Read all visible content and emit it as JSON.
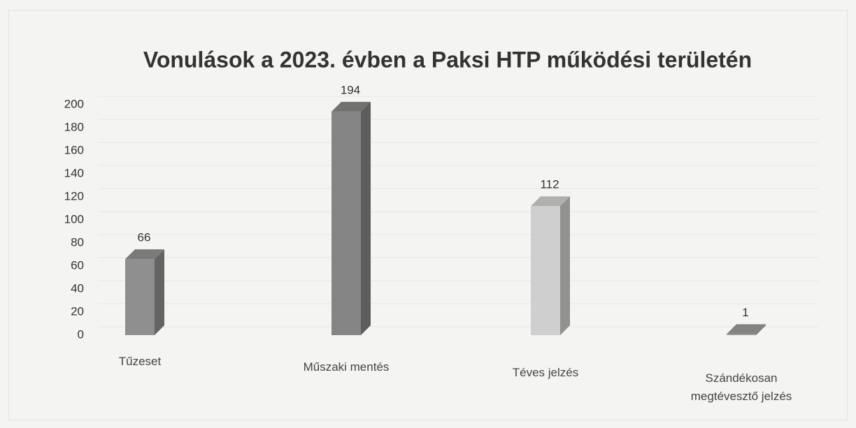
{
  "chart_data": {
    "type": "bar3d",
    "title": "Vonulások a 2023. évben a Paksi HTP működési területén",
    "categories": [
      "Tűzeset",
      "Műszaki mentés",
      "Téves jelzés",
      "Szándékosan megtévesztő jelzés"
    ],
    "values": [
      66,
      194,
      112,
      1
    ],
    "colors": [
      "#8f8f8f",
      "#858585",
      "#cfcfcf",
      "#9a9a9a"
    ],
    "ylim": [
      0,
      200
    ],
    "yticks": [
      0,
      20,
      40,
      60,
      80,
      100,
      120,
      140,
      160,
      180,
      200
    ],
    "grid": true
  }
}
